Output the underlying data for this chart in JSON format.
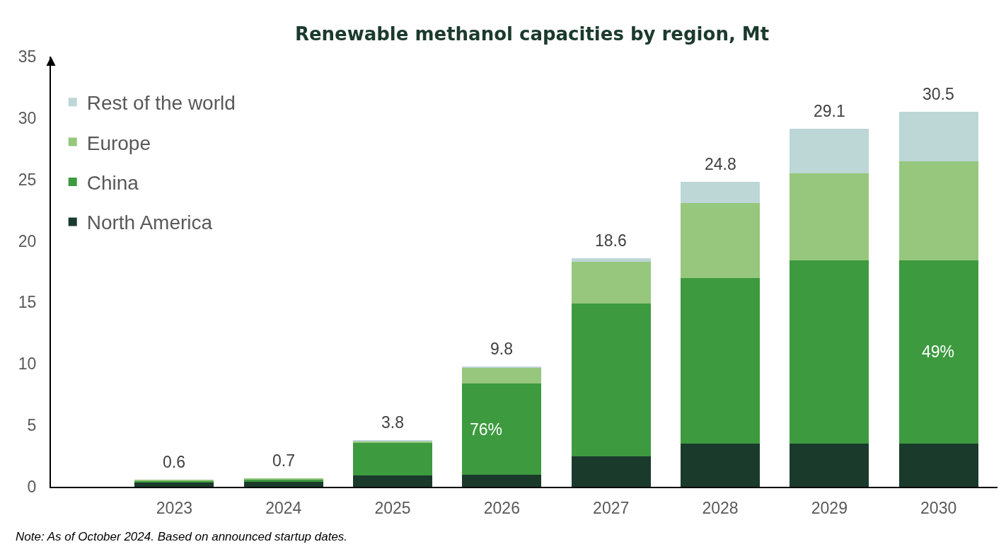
{
  "chart_data": {
    "type": "bar",
    "title": "Renewable methanol capacities by region, Mt",
    "categories": [
      "2023",
      "2024",
      "2025",
      "2026",
      "2027",
      "2028",
      "2029",
      "2030"
    ],
    "stacked": true,
    "series": [
      {
        "name": "North America",
        "color": "#1a3a2c",
        "values": [
          0.4,
          0.4,
          0.9,
          1.0,
          2.5,
          3.5,
          3.5,
          3.5
        ]
      },
      {
        "name": "China",
        "color": "#3d9a3f",
        "values": [
          0.1,
          0.2,
          2.7,
          7.4,
          12.4,
          13.5,
          14.9,
          14.9
        ]
      },
      {
        "name": "Europe",
        "color": "#96c77d",
        "values": [
          0.1,
          0.1,
          0.1,
          1.3,
          3.4,
          6.1,
          7.1,
          8.1
        ]
      },
      {
        "name": "Rest of the world",
        "color": "#bdd6d6",
        "values": [
          0,
          0,
          0.1,
          0.1,
          0.3,
          1.7,
          3.6,
          4.0
        ]
      }
    ],
    "totals": [
      "0.6",
      "0.7",
      "3.8",
      "9.8",
      "18.6",
      "24.8",
      "29.1",
      "30.5"
    ],
    "ylim": [
      0,
      35
    ],
    "yticks": [
      0,
      5,
      10,
      15,
      20,
      25,
      30,
      35
    ],
    "grid": false,
    "legend": "top left",
    "annotations": [
      "76%",
      "49%",
      "Note: As of October 2024. Based on announced startup dates."
    ]
  }
}
